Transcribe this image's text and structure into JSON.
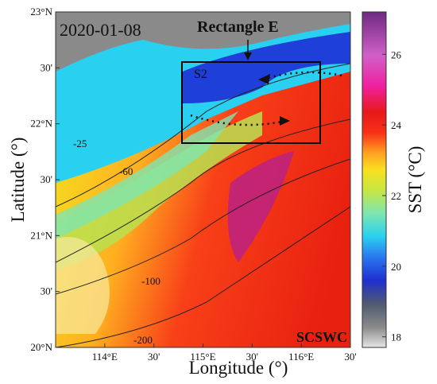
{
  "map": {
    "date": "2020-01-08",
    "rectangle_label": "Rectangle E",
    "station_label": "S2",
    "current_label": "SCSWC",
    "x_label": "Longitude (°)",
    "y_label": "Latitude (°)",
    "lonlim": [
      113.5,
      116.5
    ],
    "latlim": [
      20,
      23
    ],
    "lon_ticks": [
      {
        "value": 114,
        "label": "114°E"
      },
      {
        "value": 114.5,
        "label": "30'"
      },
      {
        "value": 115,
        "label": "115°E"
      },
      {
        "value": 115.5,
        "label": "30'"
      },
      {
        "value": 116,
        "label": "116°E"
      },
      {
        "value": 116.5,
        "label": "30'"
      }
    ],
    "lat_ticks": [
      {
        "value": 23,
        "label": "23°N"
      },
      {
        "value": 22.5,
        "label": "30'"
      },
      {
        "value": 22,
        "label": "22°N"
      },
      {
        "value": 21.5,
        "label": "30'"
      },
      {
        "value": 21,
        "label": "21°N"
      },
      {
        "value": 20.5,
        "label": "30'"
      },
      {
        "value": 20,
        "label": "20°N"
      }
    ],
    "contour_labels": [
      "-25",
      "-60",
      "-100",
      "-200"
    ]
  },
  "colorbar": {
    "label": "SST (°C)",
    "lim": [
      17.7,
      27.2
    ],
    "ticks": [
      18,
      20,
      22,
      24,
      26
    ]
  }
}
